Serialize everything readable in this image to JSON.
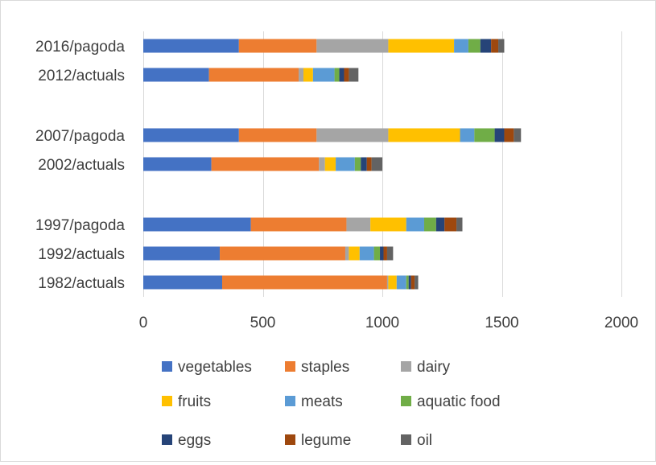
{
  "chart_data": {
    "type": "bar",
    "orientation": "horizontal",
    "stacked": true,
    "title": "",
    "xlabel": "",
    "ylabel": "",
    "xlim": [
      0,
      2000
    ],
    "xticks": [
      "0",
      "500",
      "1000",
      "1500",
      "2000"
    ],
    "grid": "vertical",
    "legend_position": "bottom",
    "categories": [
      "2016/pagoda",
      "2012/actuals",
      "2007/pagoda",
      "2002/actuals",
      "1997/pagoda",
      "1992/actuals",
      "1982/actuals"
    ],
    "groups": [
      [
        0,
        1
      ],
      [
        2,
        3
      ],
      [
        4,
        5,
        6
      ]
    ],
    "series": [
      {
        "name": "vegetables",
        "color": "#4472c4",
        "values": [
          400,
          275,
          400,
          285,
          450,
          320,
          330
        ]
      },
      {
        "name": "staples",
        "color": "#ed7d31",
        "values": [
          325,
          375,
          325,
          450,
          400,
          525,
          690
        ]
      },
      {
        "name": "dairy",
        "color": "#a5a5a5",
        "values": [
          300,
          20,
          300,
          25,
          100,
          15,
          5
        ]
      },
      {
        "name": "fruits",
        "color": "#ffc000",
        "values": [
          275,
          40,
          300,
          45,
          150,
          45,
          35
        ]
      },
      {
        "name": "meats",
        "color": "#5b9bd5",
        "values": [
          60,
          90,
          60,
          80,
          75,
          60,
          40
        ]
      },
      {
        "name": "aquatic food",
        "color": "#70ad47",
        "values": [
          50,
          20,
          85,
          25,
          50,
          25,
          10
        ]
      },
      {
        "name": "eggs",
        "color": "#264478",
        "values": [
          45,
          20,
          40,
          25,
          35,
          15,
          10
        ]
      },
      {
        "name": "legume",
        "color": "#9e480e",
        "values": [
          30,
          20,
          40,
          20,
          50,
          15,
          15
        ]
      },
      {
        "name": "oil",
        "color": "#636363",
        "values": [
          25,
          40,
          30,
          45,
          25,
          25,
          15
        ]
      }
    ]
  }
}
